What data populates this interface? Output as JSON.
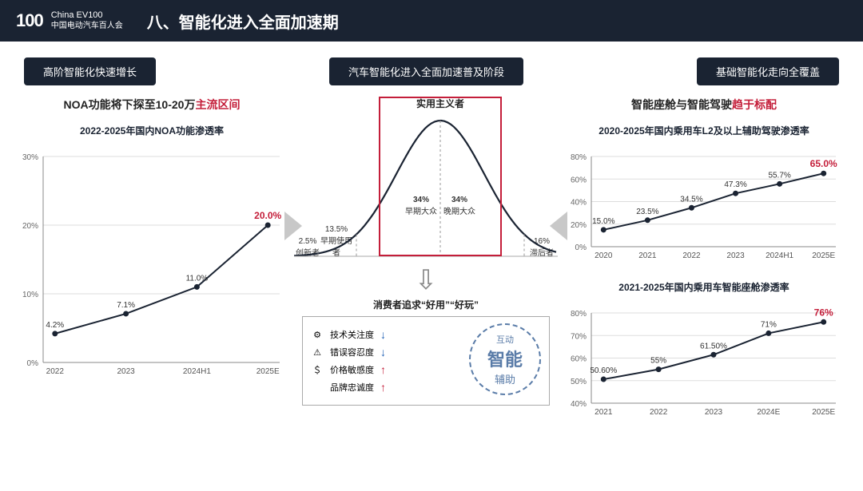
{
  "header": {
    "logo_num": "100",
    "logo_en": "China EV100",
    "logo_cn": "中国电动汽车百人会",
    "title": "八、智能化进入全面加速期"
  },
  "pills": {
    "left": "高阶智能化快速增长",
    "mid": "汽车智能化进入全面加速普及阶段",
    "right": "基础智能化走向全覆盖"
  },
  "left": {
    "subhead_a": "NOA功能将下探至10-20万",
    "subhead_b": "主流区间",
    "chart": {
      "title": "2022-2025年国内NOA功能渗透率",
      "categories": [
        "2022",
        "2023",
        "2024H1",
        "2025E"
      ],
      "values": [
        4.2,
        7.1,
        11.0,
        20.0
      ],
      "labels": [
        "4.2%",
        "7.1%",
        "11.0%",
        "20.0%"
      ],
      "highlight_index": 3,
      "ylim": [
        0,
        30
      ],
      "ytick_step": 10,
      "line_color": "#1a2332",
      "highlight_color": "#c41e3a"
    }
  },
  "mid": {
    "bell": {
      "title": "实用主义者",
      "outer_left_pct": "2.5%",
      "outer_left_lbl": "创新者",
      "outer_left2_pct": "13.5%",
      "outer_left2_lbl": "早期使用者",
      "seg1_pct": "34%",
      "seg1_lbl": "早期大众",
      "seg2_pct": "34%",
      "seg2_lbl": "晚期大众",
      "outer_right_pct": "16%",
      "outer_right_lbl": "滞后者",
      "curve_color": "#1a2332"
    },
    "consumer": {
      "title": "消费者追求“好用”“好玩”",
      "items": [
        {
          "icon": "⚙",
          "label": "技术关注度",
          "dir": "down"
        },
        {
          "icon": "⚠",
          "label": "错误容忍度",
          "dir": "down"
        },
        {
          "icon": "＄",
          "label": "价格敏感度",
          "dir": "up"
        },
        {
          "icon": "",
          "label": "品牌忠诚度",
          "dir": "up"
        }
      ],
      "cloud": {
        "w1": "互动",
        "w2": "智能",
        "w3": "辅助"
      }
    }
  },
  "right": {
    "subhead_a": "智能座舱与智能驾驶",
    "subhead_b": "趋于标配",
    "chart1": {
      "title": "2020-2025年国内乘用车L2及以上辅助驾驶渗透率",
      "categories": [
        "2020",
        "2021",
        "2022",
        "2023",
        "2024H1",
        "2025E"
      ],
      "values": [
        15.0,
        23.5,
        34.5,
        47.3,
        55.7,
        65.0
      ],
      "labels": [
        "15.0%",
        "23.5%",
        "34.5%",
        "47.3%",
        "55.7%",
        "65.0%"
      ],
      "highlight_index": 5,
      "ylim": [
        0,
        80
      ],
      "ytick_step": 20,
      "line_color": "#1a2332",
      "highlight_color": "#c41e3a"
    },
    "chart2": {
      "title": "2021-2025年国内乘用车智能座舱渗透率",
      "categories": [
        "2021",
        "2022",
        "2023",
        "2024E",
        "2025E"
      ],
      "values": [
        50.6,
        55,
        61.5,
        71,
        76
      ],
      "labels": [
        "50.60%",
        "55%",
        "61.50%",
        "71%",
        "76%"
      ],
      "highlight_index": 4,
      "ylim": [
        40,
        80
      ],
      "ytick_step": 10,
      "line_color": "#1a2332",
      "highlight_color": "#c41e3a"
    }
  }
}
